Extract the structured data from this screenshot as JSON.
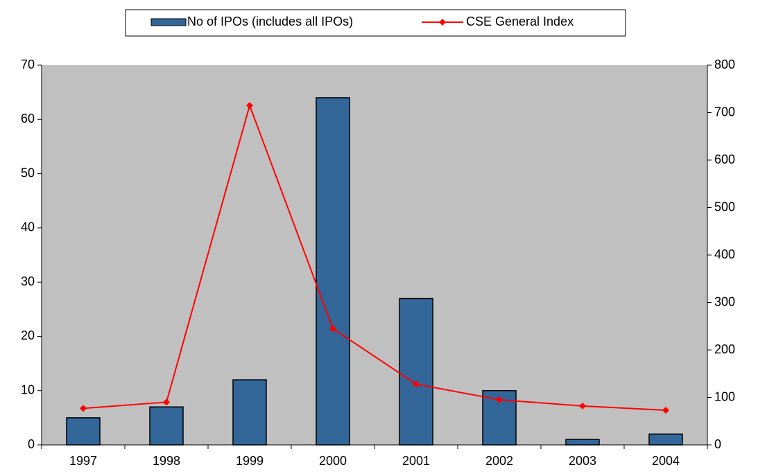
{
  "chart_data": {
    "type": "bar",
    "categories": [
      "1997",
      "1998",
      "1999",
      "2000",
      "2001",
      "2002",
      "2003",
      "2004"
    ],
    "series": [
      {
        "name": "No of IPOs (includes all IPOs)",
        "type": "bar",
        "color": "#336699",
        "values": [
          5,
          7,
          12,
          64,
          27,
          10,
          1,
          2
        ]
      },
      {
        "name": "CSE General Index",
        "type": "line",
        "axis": "y2",
        "color": "#ff0000",
        "values": [
          77,
          90,
          715,
          245,
          128,
          95,
          82,
          73
        ]
      }
    ],
    "ylim": [
      0,
      70
    ],
    "yticks": [
      0,
      10,
      20,
      30,
      40,
      50,
      60,
      70
    ],
    "y2lim": [
      0,
      800
    ],
    "y2ticks": [
      0,
      100,
      200,
      300,
      400,
      500,
      600,
      700,
      800
    ],
    "grid": false,
    "legend": "top",
    "background": "#c0c0c0"
  }
}
